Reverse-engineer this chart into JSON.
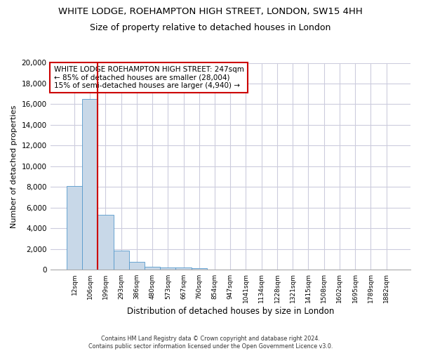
{
  "title1": "WHITE LODGE, ROEHAMPTON HIGH STREET, LONDON, SW15 4HH",
  "title2": "Size of property relative to detached houses in London",
  "xlabel": "Distribution of detached houses by size in London",
  "ylabel": "Number of detached properties",
  "categories": [
    "12sqm",
    "106sqm",
    "199sqm",
    "293sqm",
    "386sqm",
    "480sqm",
    "573sqm",
    "667sqm",
    "760sqm",
    "854sqm",
    "947sqm",
    "1041sqm",
    "1134sqm",
    "1228sqm",
    "1321sqm",
    "1415sqm",
    "1508sqm",
    "1602sqm",
    "1695sqm",
    "1789sqm",
    "1882sqm"
  ],
  "values": [
    8100,
    16500,
    5300,
    1850,
    800,
    320,
    220,
    220,
    150,
    0,
    0,
    0,
    0,
    0,
    0,
    0,
    0,
    0,
    0,
    0,
    0
  ],
  "bar_color": "#c8d8e8",
  "bar_edge_color": "#5599cc",
  "vline_color": "#cc0000",
  "annotation_text": "WHITE LODGE ROEHAMPTON HIGH STREET: 247sqm\n← 85% of detached houses are smaller (28,004)\n15% of semi-detached houses are larger (4,940) →",
  "annotation_box_color": "white",
  "annotation_box_edge": "#cc0000",
  "ylim": [
    0,
    20000
  ],
  "yticks": [
    0,
    2000,
    4000,
    6000,
    8000,
    10000,
    12000,
    14000,
    16000,
    18000,
    20000
  ],
  "footnote": "Contains HM Land Registry data © Crown copyright and database right 2024.\nContains public sector information licensed under the Open Government Licence v3.0.",
  "bg_color": "#ffffff",
  "plot_bg_color": "#ffffff",
  "grid_color": "#ccccdd",
  "title_fontsize": 9.5,
  "subtitle_fontsize": 9
}
